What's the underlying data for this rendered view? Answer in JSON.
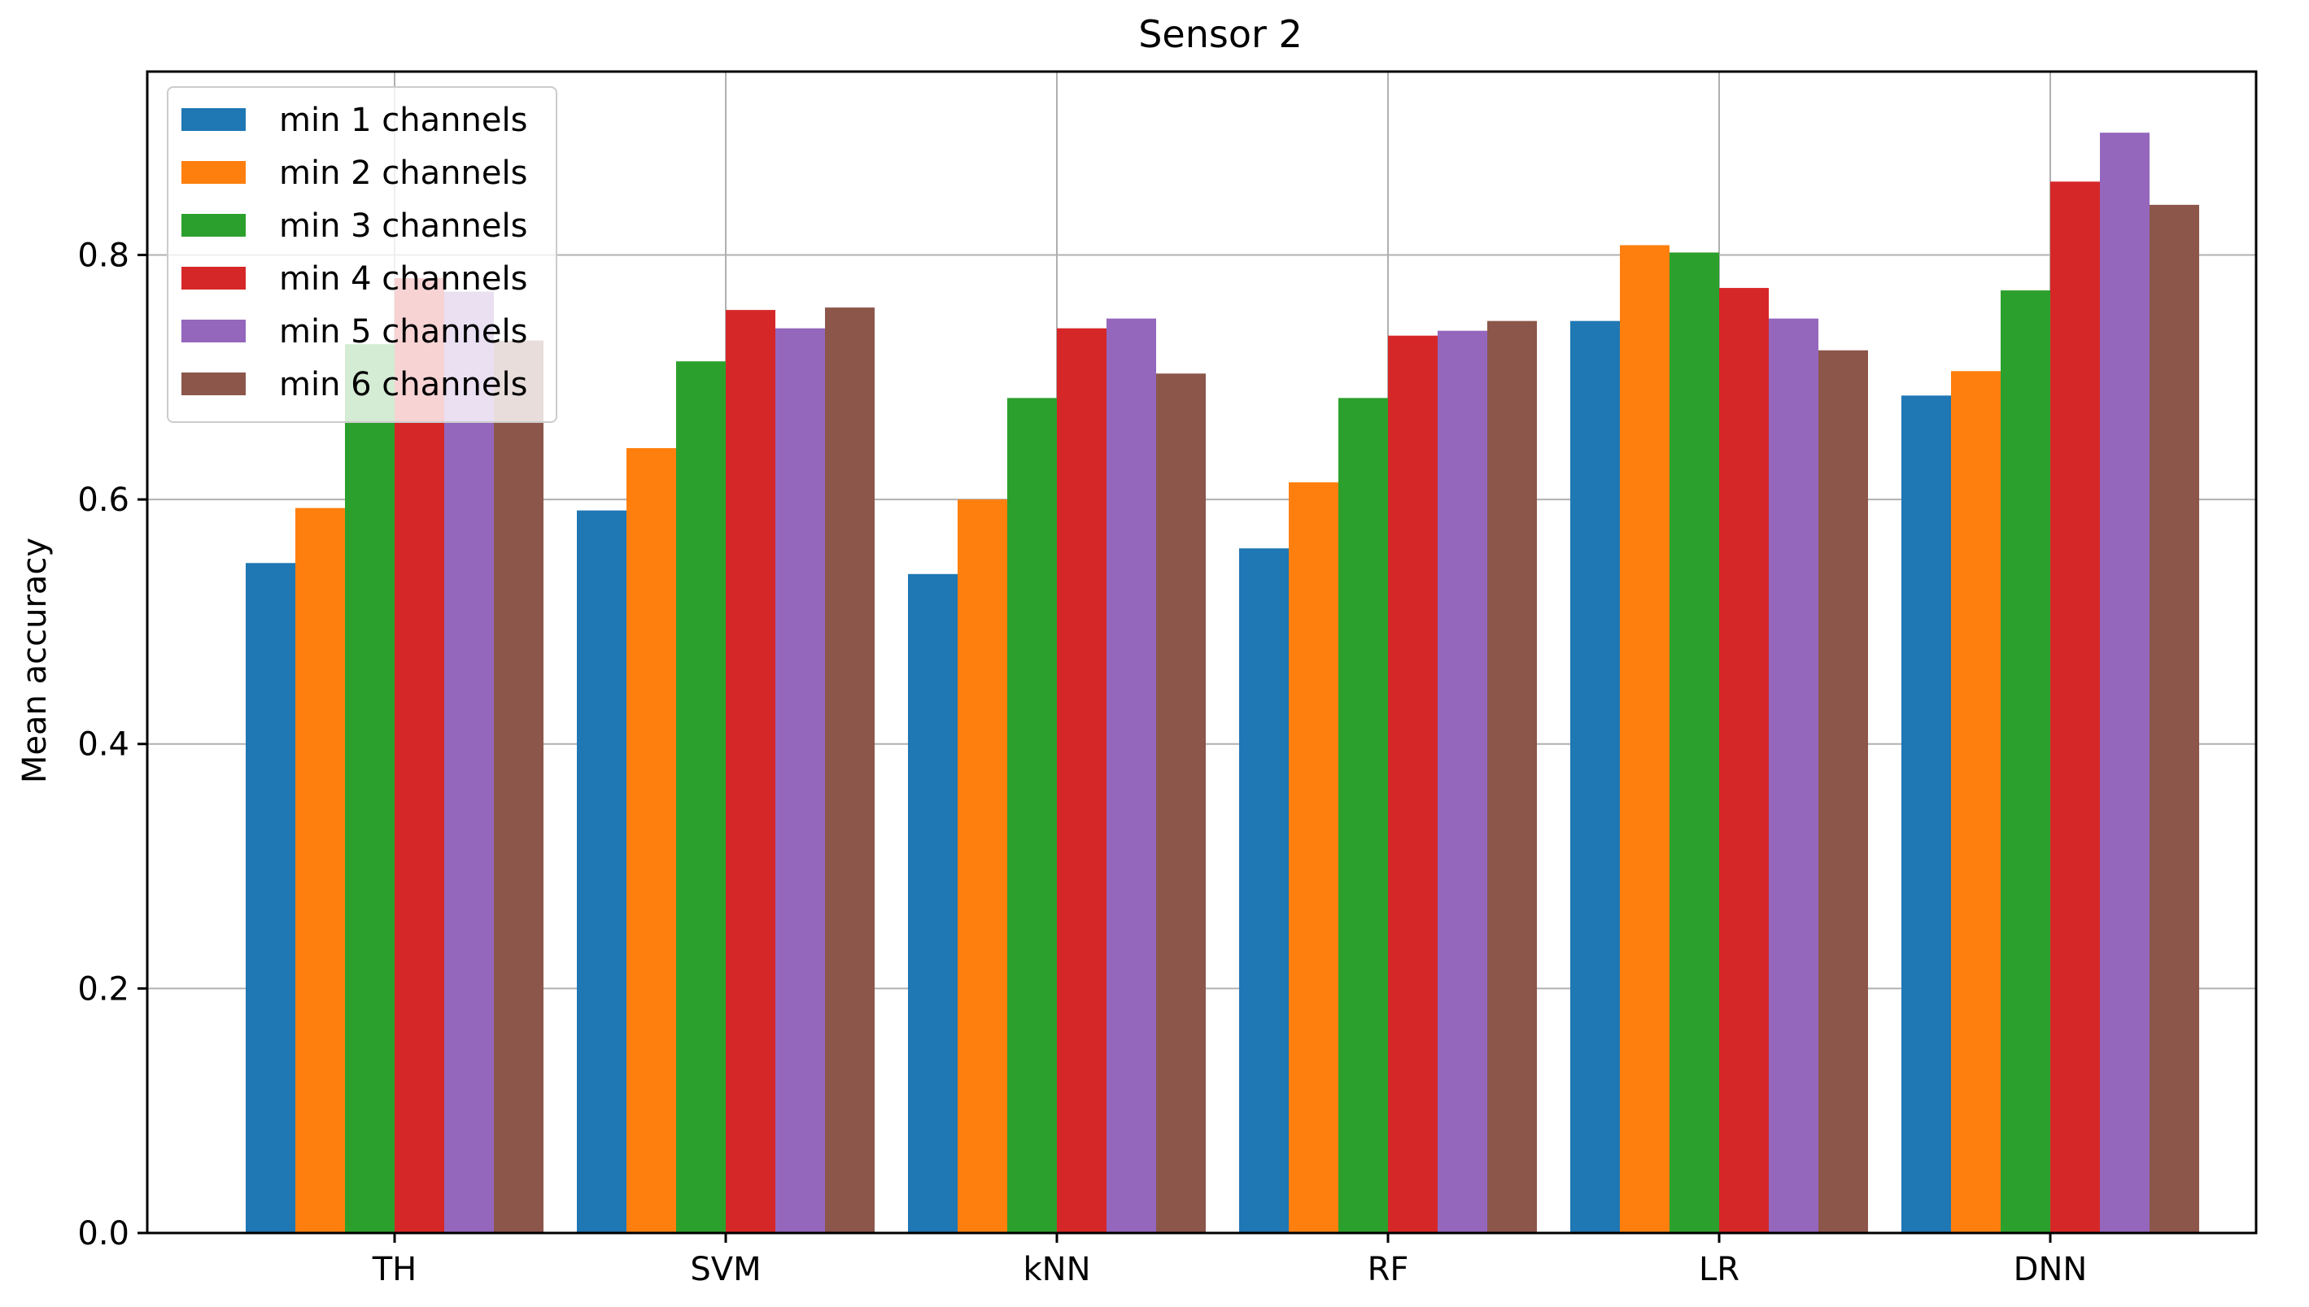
{
  "chart_data": {
    "type": "bar",
    "title": "Sensor 2",
    "xlabel": "",
    "ylabel": "Mean accuracy",
    "ylim": [
      0.0,
      0.95
    ],
    "yticks": [
      0.0,
      0.2,
      0.4,
      0.6,
      0.8
    ],
    "ytick_labels": [
      "0.0",
      "0.2",
      "0.4",
      "0.6",
      "0.8"
    ],
    "grid": true,
    "legend_position": "top-left",
    "categories": [
      "TH",
      "SVM",
      "kNN",
      "RF",
      "LR",
      "DNN"
    ],
    "series": [
      {
        "name": "min 1 channels",
        "color": "#1f77b4",
        "values": [
          0.548,
          0.591,
          0.539,
          0.56,
          0.746,
          0.685
        ]
      },
      {
        "name": "min 2 channels",
        "color": "#ff7f0e",
        "values": [
          0.593,
          0.642,
          0.6,
          0.614,
          0.808,
          0.705
        ]
      },
      {
        "name": "min 3 channels",
        "color": "#2ca02c",
        "values": [
          0.727,
          0.713,
          0.683,
          0.683,
          0.802,
          0.771
        ]
      },
      {
        "name": "min 4 channels",
        "color": "#d62728",
        "values": [
          0.781,
          0.755,
          0.74,
          0.734,
          0.773,
          0.86
        ]
      },
      {
        "name": "min 5 channels",
        "color": "#9467bd",
        "values": [
          0.77,
          0.74,
          0.748,
          0.738,
          0.748,
          0.9
        ]
      },
      {
        "name": "min 6 channels",
        "color": "#8c564b",
        "values": [
          0.73,
          0.757,
          0.703,
          0.746,
          0.722,
          0.841
        ]
      }
    ]
  }
}
